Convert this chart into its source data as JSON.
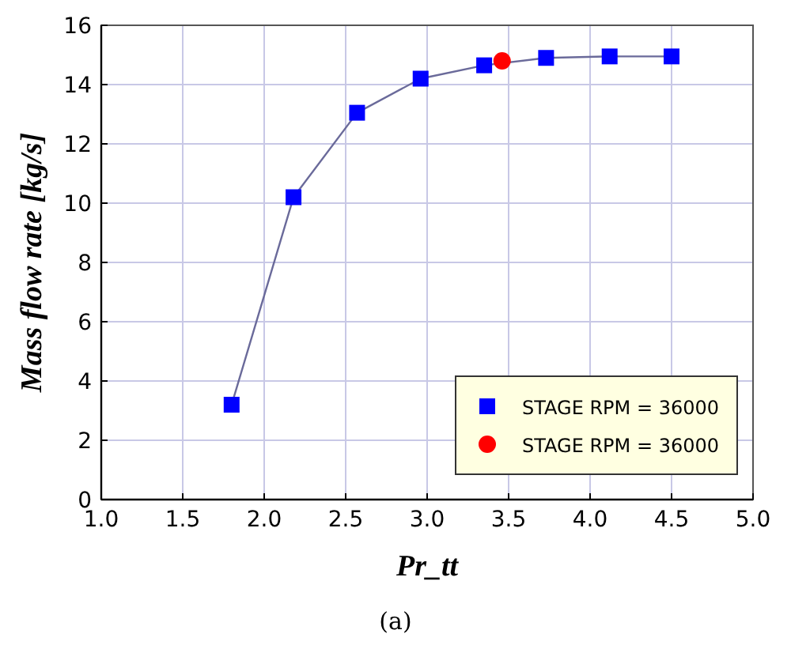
{
  "chart_data": {
    "type": "line",
    "xlabel": "Pr_tt",
    "ylabel": "Mass flow rate [kg/s]",
    "annotations": [
      "(a)"
    ],
    "xlim": [
      1.0,
      5.0
    ],
    "xticks": [
      {
        "value": 1,
        "label": "1.0"
      },
      {
        "value": 1.5,
        "label": "1.5"
      },
      {
        "value": 2,
        "label": "2.0"
      },
      {
        "value": 2.5,
        "label": "2.5"
      },
      {
        "value": 3,
        "label": "3.0"
      },
      {
        "value": 3.5,
        "label": "3.5"
      },
      {
        "value": 4,
        "label": "4.0"
      },
      {
        "value": 4.5,
        "label": "4.5"
      },
      {
        "value": 5,
        "label": "5.0"
      }
    ],
    "ylim": [
      0,
      16
    ],
    "yticks": [
      0,
      2,
      4,
      6,
      8,
      10,
      12,
      14,
      16
    ],
    "grid": true,
    "legend": "bottom right",
    "series": [
      {
        "name": "STAGE RPM = 36000",
        "marker": "square",
        "color": "#0000ff",
        "x": [
          1.8,
          2.18,
          2.57,
          2.96,
          3.35,
          3.73,
          4.12,
          4.5
        ],
        "values": [
          3.2,
          10.2,
          13.05,
          14.2,
          14.65,
          14.9,
          14.95,
          14.95
        ]
      },
      {
        "name": "STAGE RPM = 36000",
        "type": "scatter",
        "marker": "circle",
        "color": "#ff0000",
        "x": [
          3.46
        ],
        "values": [
          14.8
        ]
      }
    ]
  }
}
